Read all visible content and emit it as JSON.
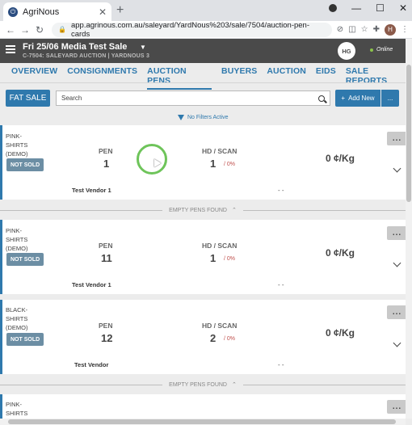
{
  "browser": {
    "tab_title": "AgriNous",
    "url": "app.agrinous.com.au/saleyard/YardNous%203/sale/7504/auction-pen-cards",
    "profile_initial": "H"
  },
  "header": {
    "sale_title": "Fri 25/06 Media Test Sale",
    "sale_subtitle": "C-7504: SALEYARD AUCTION | YARDNOUS 3",
    "user_initials": "HG",
    "status": "Online"
  },
  "nav": {
    "tabs": [
      {
        "label": "OVERVIEW"
      },
      {
        "label": "CONSIGNMENTS"
      },
      {
        "label": "AUCTION PENS"
      },
      {
        "label": "BUYERS"
      },
      {
        "label": "AUCTION"
      },
      {
        "label": "EIDS"
      },
      {
        "label": "SALE REPORTS"
      }
    ],
    "active": "AUCTION PENS"
  },
  "toolbar": {
    "fat_sale_label": "FAT SALE",
    "search_placeholder": "Search",
    "add_new_label": "Add New",
    "more_label": "...",
    "filters_label": "No Filters Active"
  },
  "labels": {
    "pen": "PEN",
    "hd_scan": "HD / SCAN",
    "empty_pens": "EMPTY PENS FOUND",
    "more": "..."
  },
  "pens": [
    {
      "lot": "PINK-SHIRTS (DEMO)",
      "status": "NOT SOLD",
      "pen": "1",
      "hd": "1",
      "scan": "/ 0%",
      "price": "0 ¢/Kg",
      "vendor": "Test Vendor 1",
      "extra": "- -"
    },
    {
      "lot": "PINK-SHIRTS (DEMO)",
      "status": "NOT SOLD",
      "pen": "11",
      "hd": "1",
      "scan": "/ 0%",
      "price": "0 ¢/Kg",
      "vendor": "Test Vendor 1",
      "extra": "- -"
    },
    {
      "lot": "BLACK-SHIRTS (DEMO)",
      "status": "NOT SOLD",
      "pen": "12",
      "hd": "2",
      "scan": "/ 0%",
      "price": "0 ¢/Kg",
      "vendor": "Test Vendor",
      "extra": "- -"
    },
    {
      "lot": "PINK-SHIRTS"
    }
  ],
  "colors": {
    "primary": "#2f79ad",
    "header_bg": "#4a4a4a",
    "status_badge": "#6c8ea4",
    "scan_red": "#c0504d",
    "spinner": "#6ec45a"
  }
}
